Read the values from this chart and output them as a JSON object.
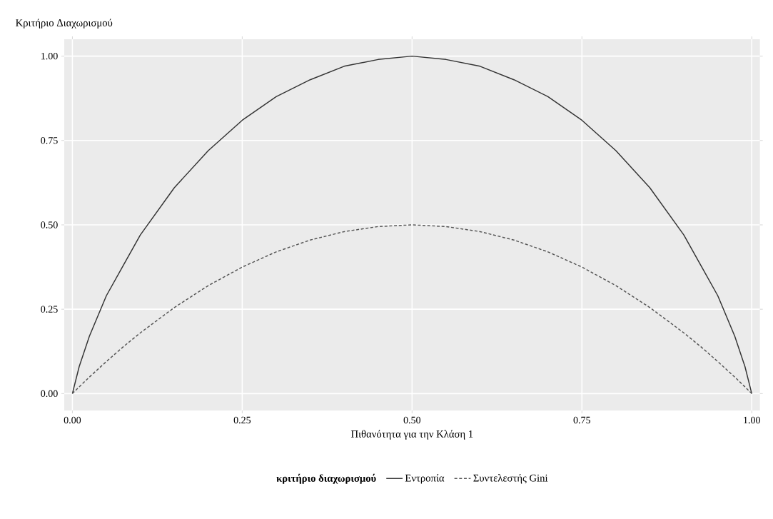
{
  "chart_data": {
    "type": "line",
    "xlabel": "Πιθανότητα για την Κλάση 1",
    "ylabel": "Κριτήριο Διαχωρισμού",
    "legend_title": "κριτήριο διαχωρισμού",
    "legend": "bottom",
    "grid": true,
    "xlim": [
      -0.012,
      1.012
    ],
    "ylim": [
      -0.05,
      1.05
    ],
    "xticks": [
      {
        "value": 0,
        "label": "0.00"
      },
      {
        "value": 0.25,
        "label": "0.25"
      },
      {
        "value": 0.5,
        "label": "0.50"
      },
      {
        "value": 0.75,
        "label": "0.75"
      },
      {
        "value": 1,
        "label": "1.00"
      }
    ],
    "yticks": [
      {
        "value": 0,
        "label": "0.00"
      },
      {
        "value": 0.25,
        "label": "0.25"
      },
      {
        "value": 0.5,
        "label": "0.50"
      },
      {
        "value": 0.75,
        "label": "0.75"
      },
      {
        "value": 1,
        "label": "1.00"
      }
    ],
    "x": [
      0,
      0.01,
      0.025,
      0.05,
      0.075,
      0.1,
      0.15,
      0.2,
      0.25,
      0.3,
      0.35,
      0.4,
      0.45,
      0.5,
      0.55,
      0.6,
      0.65,
      0.7,
      0.75,
      0.8,
      0.85,
      0.9,
      0.925,
      0.95,
      0.975,
      0.99,
      1
    ],
    "series": [
      {
        "name": "Εντροπία",
        "color": "#333333",
        "line_style": "solid",
        "values": [
          0,
          0.08,
          0.17,
          0.29,
          0.38,
          0.47,
          0.61,
          0.72,
          0.81,
          0.88,
          0.93,
          0.97,
          0.99,
          1.0,
          0.99,
          0.97,
          0.93,
          0.88,
          0.81,
          0.72,
          0.61,
          0.47,
          0.38,
          0.29,
          0.17,
          0.08,
          0
        ]
      },
      {
        "name": "Συντελεστής Gini",
        "color": "#555555",
        "line_style": "dashed",
        "values": [
          0,
          0.02,
          0.049,
          0.095,
          0.139,
          0.18,
          0.255,
          0.32,
          0.375,
          0.42,
          0.455,
          0.48,
          0.495,
          0.5,
          0.495,
          0.48,
          0.455,
          0.42,
          0.375,
          0.32,
          0.255,
          0.18,
          0.139,
          0.095,
          0.049,
          0.02,
          0
        ]
      }
    ]
  }
}
